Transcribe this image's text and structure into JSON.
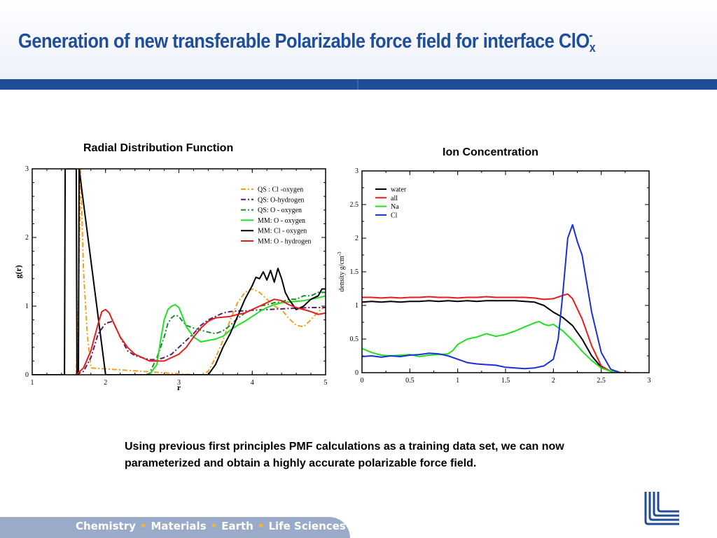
{
  "slide": {
    "title_main": "Generation of new transferable Polarizable force field for interface ClO",
    "title_sub": "x",
    "title_sup": "-",
    "caption": "Using previous first principles PMF calculations as a training data set, we can now parameterized and obtain a highly accurate polarizable force field.",
    "footer": [
      "Chemistry",
      "Materials",
      "Earth",
      "Life Sciences"
    ],
    "footer_separator": "•"
  },
  "colors": {
    "title": "#1f4e9c",
    "bar": "#1f4e96",
    "footer_band": "#9aabc9",
    "footer_dot": "#f3b33d"
  },
  "chart_data": [
    {
      "type": "line",
      "title": "Radial Distribution Function",
      "xlabel": "r",
      "ylabel": "g(r)",
      "xlim": [
        1,
        5
      ],
      "ylim": [
        0,
        3
      ],
      "xticks": [
        1,
        2,
        3,
        4,
        5
      ],
      "yticks": [
        0,
        1,
        2,
        3
      ],
      "legend_position": "top-right",
      "series": [
        {
          "name": "QS : Cl -oxygen",
          "color": "#f0a020",
          "dash": "7,3,2,3",
          "x": [
            1.4,
            1.45,
            1.5,
            1.55,
            1.6,
            1.63,
            1.66,
            1.7,
            1.75,
            1.8,
            3.2,
            3.3,
            3.4,
            3.5,
            3.6,
            3.7,
            3.8,
            3.9,
            4.0,
            4.1,
            4.2,
            4.3,
            4.4,
            4.5,
            4.6,
            4.7,
            4.8,
            4.9,
            5.0
          ],
          "y": [
            0,
            0,
            0,
            0,
            0,
            1.0,
            3.0,
            1.5,
            0.6,
            0.1,
            0,
            0,
            0.05,
            0.25,
            0.5,
            0.8,
            1.05,
            1.2,
            1.25,
            1.2,
            1.1,
            1.0,
            0.95,
            0.82,
            0.72,
            0.7,
            0.8,
            0.92,
            1.0
          ]
        },
        {
          "name": "QS: O-hydrogen",
          "color": "#5a1e6e",
          "dash": "7,3,2,3",
          "x": [
            1.6,
            1.7,
            1.8,
            1.9,
            2.0,
            2.1,
            2.2,
            2.3,
            2.4,
            2.5,
            2.6,
            2.7,
            2.8,
            2.9,
            3.0,
            3.1,
            3.2,
            3.3,
            3.4,
            3.5,
            3.6,
            3.7,
            3.8,
            3.9,
            4.0,
            4.2,
            4.4,
            4.6,
            4.8,
            5.0
          ],
          "y": [
            0,
            0.05,
            0.25,
            0.6,
            0.75,
            0.78,
            0.55,
            0.35,
            0.28,
            0.25,
            0.22,
            0.22,
            0.25,
            0.3,
            0.4,
            0.5,
            0.6,
            0.72,
            0.8,
            0.85,
            0.9,
            0.92,
            0.93,
            0.93,
            0.94,
            0.95,
            0.96,
            0.97,
            0.98,
            0.98
          ]
        },
        {
          "name": "QS: O - oxygen",
          "color": "#1e8a2c",
          "dash": "7,3,2,3",
          "x": [
            2.55,
            2.6,
            2.7,
            2.8,
            2.85,
            2.9,
            2.95,
            3.0,
            3.05,
            3.1,
            3.15,
            3.2,
            3.3,
            3.4,
            3.5,
            3.6,
            3.7,
            3.8,
            3.9,
            4.0,
            4.1,
            4.2,
            4.3,
            4.4,
            4.5,
            4.6,
            4.7,
            4.8,
            4.9,
            5.0
          ],
          "y": [
            0,
            0.02,
            0.25,
            0.55,
            0.75,
            0.83,
            0.87,
            0.85,
            0.78,
            0.72,
            0.7,
            0.68,
            0.65,
            0.62,
            0.6,
            0.64,
            0.72,
            0.82,
            0.9,
            0.95,
            1.0,
            1.02,
            1.05,
            1.06,
            1.1,
            1.1,
            1.15,
            1.15,
            1.2,
            1.2
          ]
        },
        {
          "name": "MM: O - oxygen",
          "color": "#22e022",
          "dash": "",
          "x": [
            2.6,
            2.7,
            2.75,
            2.8,
            2.85,
            2.9,
            2.95,
            3.0,
            3.05,
            3.1,
            3.2,
            3.3,
            3.4,
            3.5,
            3.6,
            3.7,
            3.8,
            3.9,
            4.0,
            4.1,
            4.2,
            4.3,
            4.4,
            4.5,
            4.6,
            4.7,
            4.8,
            4.9,
            5.0
          ],
          "y": [
            0,
            0.15,
            0.5,
            0.8,
            0.95,
            1.0,
            1.02,
            0.98,
            0.85,
            0.7,
            0.55,
            0.48,
            0.5,
            0.52,
            0.56,
            0.65,
            0.72,
            0.78,
            0.85,
            0.92,
            0.98,
            1.02,
            1.05,
            1.06,
            1.07,
            1.08,
            1.1,
            1.12,
            1.15
          ]
        },
        {
          "name": "MM: Cl - oxygen",
          "color": "#000000",
          "dash": "",
          "x": [
            1.0,
            1.4,
            1.44,
            1.45,
            1.6,
            1.61,
            1.63,
            1.64,
            2.0,
            3.0,
            3.4,
            3.5,
            3.6,
            3.7,
            3.8,
            3.9,
            4.0,
            4.05,
            4.1,
            4.15,
            4.2,
            4.25,
            4.3,
            4.35,
            4.4,
            4.45,
            4.5,
            4.6,
            4.7,
            4.8,
            4.9,
            4.95,
            5.0
          ],
          "y": [
            0,
            0,
            0,
            3.0,
            3.0,
            0,
            0,
            3.0,
            0,
            0,
            0,
            0.15,
            0.4,
            0.6,
            0.85,
            1.1,
            1.3,
            1.42,
            1.4,
            1.5,
            1.38,
            1.52,
            1.35,
            1.55,
            1.4,
            1.2,
            1.1,
            0.95,
            1.0,
            1.1,
            1.15,
            1.25,
            1.25
          ]
        },
        {
          "name": "MM: O - hydrogen",
          "color": "#e81c1c",
          "dash": "",
          "x": [
            1.6,
            1.7,
            1.8,
            1.9,
            1.95,
            2.0,
            2.05,
            2.1,
            2.2,
            2.3,
            2.4,
            2.5,
            2.6,
            2.7,
            2.8,
            2.9,
            3.0,
            3.1,
            3.2,
            3.3,
            3.4,
            3.5,
            3.6,
            3.7,
            3.8,
            3.9,
            4.0,
            4.1,
            4.2,
            4.3,
            4.4,
            4.5,
            4.6,
            4.7,
            4.8,
            4.9,
            5.0
          ],
          "y": [
            0,
            0.1,
            0.35,
            0.75,
            0.92,
            0.95,
            0.9,
            0.78,
            0.55,
            0.4,
            0.3,
            0.25,
            0.2,
            0.2,
            0.2,
            0.25,
            0.3,
            0.4,
            0.55,
            0.68,
            0.78,
            0.83,
            0.84,
            0.85,
            0.88,
            0.9,
            0.95,
            1.0,
            1.05,
            1.1,
            1.08,
            1.02,
            0.98,
            0.95,
            0.92,
            0.88,
            0.9
          ]
        }
      ]
    },
    {
      "type": "line",
      "title": "Ion Concentration",
      "xlabel": "",
      "ylabel": "density g/cm-3",
      "ylabel_main": "density g/cm",
      "ylabel_sup": "-3",
      "xlim": [
        0,
        3
      ],
      "ylim": [
        0,
        3
      ],
      "xticks": [
        0,
        0.5,
        1,
        1.5,
        2,
        2.5,
        3
      ],
      "yticks": [
        0,
        0.5,
        1,
        1.5,
        2,
        2.5,
        3
      ],
      "legend_position": "top-left",
      "series": [
        {
          "name": "water",
          "color": "#000000",
          "x": [
            0,
            0.1,
            0.2,
            0.3,
            0.4,
            0.5,
            0.6,
            0.7,
            0.8,
            0.9,
            1.0,
            1.1,
            1.2,
            1.3,
            1.4,
            1.5,
            1.6,
            1.7,
            1.8,
            1.9,
            2.0,
            2.1,
            2.2,
            2.3,
            2.4,
            2.5,
            2.6,
            2.7,
            2.8
          ],
          "y": [
            1.05,
            1.06,
            1.05,
            1.06,
            1.05,
            1.06,
            1.06,
            1.07,
            1.06,
            1.07,
            1.06,
            1.07,
            1.06,
            1.07,
            1.07,
            1.07,
            1.07,
            1.06,
            1.05,
            1.0,
            0.9,
            0.82,
            0.7,
            0.5,
            0.25,
            0.08,
            0.02,
            0,
            0
          ]
        },
        {
          "name": "all",
          "color": "#e81c1c",
          "x": [
            0,
            0.1,
            0.2,
            0.3,
            0.4,
            0.5,
            0.6,
            0.7,
            0.8,
            0.9,
            1.0,
            1.1,
            1.2,
            1.3,
            1.4,
            1.5,
            1.6,
            1.7,
            1.8,
            1.9,
            2.0,
            2.1,
            2.15,
            2.2,
            2.3,
            2.4,
            2.5,
            2.6,
            2.7,
            2.8
          ],
          "y": [
            1.12,
            1.12,
            1.11,
            1.12,
            1.11,
            1.12,
            1.12,
            1.13,
            1.12,
            1.12,
            1.11,
            1.12,
            1.12,
            1.13,
            1.12,
            1.12,
            1.12,
            1.12,
            1.11,
            1.09,
            1.1,
            1.15,
            1.17,
            1.1,
            0.8,
            0.4,
            0.1,
            0.02,
            0,
            0
          ]
        },
        {
          "name": "Na",
          "color": "#22e022",
          "x": [
            0,
            0.1,
            0.2,
            0.3,
            0.4,
            0.5,
            0.6,
            0.7,
            0.8,
            0.9,
            0.95,
            1.0,
            1.1,
            1.2,
            1.3,
            1.4,
            1.5,
            1.6,
            1.7,
            1.8,
            1.85,
            1.9,
            1.95,
            2.0,
            2.1,
            2.2,
            2.3,
            2.4,
            2.5,
            2.6,
            2.7
          ],
          "y": [
            0.36,
            0.3,
            0.26,
            0.25,
            0.26,
            0.27,
            0.24,
            0.26,
            0.27,
            0.28,
            0.33,
            0.42,
            0.5,
            0.53,
            0.58,
            0.54,
            0.57,
            0.62,
            0.68,
            0.74,
            0.76,
            0.72,
            0.7,
            0.72,
            0.62,
            0.48,
            0.32,
            0.18,
            0.07,
            0.02,
            0
          ]
        },
        {
          "name": "Cl",
          "color": "#1a2ee0",
          "x": [
            0,
            0.1,
            0.2,
            0.3,
            0.4,
            0.5,
            0.6,
            0.7,
            0.8,
            0.9,
            1.0,
            1.1,
            1.2,
            1.3,
            1.4,
            1.5,
            1.6,
            1.7,
            1.8,
            1.9,
            2.0,
            2.05,
            2.1,
            2.15,
            2.2,
            2.25,
            2.3,
            2.4,
            2.5,
            2.6,
            2.7
          ],
          "y": [
            0.24,
            0.25,
            0.23,
            0.25,
            0.24,
            0.26,
            0.27,
            0.29,
            0.28,
            0.25,
            0.2,
            0.15,
            0.13,
            0.12,
            0.11,
            0.08,
            0.07,
            0.06,
            0.07,
            0.1,
            0.2,
            0.5,
            1.2,
            2.0,
            2.2,
            1.95,
            1.75,
            0.9,
            0.3,
            0.05,
            0
          ]
        }
      ]
    }
  ]
}
